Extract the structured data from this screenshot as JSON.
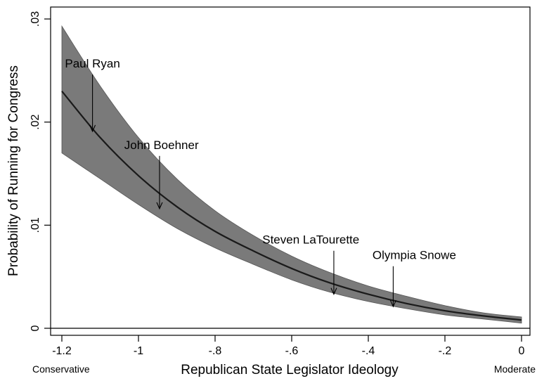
{
  "chart_data": {
    "type": "line",
    "title": "",
    "xlabel": "Republican State Legislator Ideology",
    "ylabel": "Probability of Running for Congress",
    "xlim": [
      -1.2,
      0
    ],
    "ylim": [
      0,
      0.03
    ],
    "x_ticks": [
      {
        "value": -1.2,
        "label": "-1.2"
      },
      {
        "value": -1.0,
        "label": "-1"
      },
      {
        "value": -0.8,
        "label": "-.8"
      },
      {
        "value": -0.6,
        "label": "-.6"
      },
      {
        "value": -0.4,
        "label": "-.4"
      },
      {
        "value": -0.2,
        "label": "-.2"
      },
      {
        "value": 0.0,
        "label": "0"
      }
    ],
    "y_ticks": [
      {
        "value": 0,
        "label": "0"
      },
      {
        "value": 0.01,
        "label": ".01"
      },
      {
        "value": 0.02,
        "label": ".02"
      },
      {
        "value": 0.03,
        "label": ".03"
      }
    ],
    "x_end_labels": {
      "left": "Conservative",
      "right": "Moderate"
    },
    "grid": false,
    "series": [
      {
        "x": [
          -1.2,
          -1.1,
          -1.0,
          -0.9,
          -0.8,
          -0.7,
          -0.6,
          -0.5,
          -0.4,
          -0.3,
          -0.2,
          -0.1,
          0.0
        ],
        "y": [
          0.023,
          0.0185,
          0.0148,
          0.0118,
          0.0094,
          0.0075,
          0.0058,
          0.0044,
          0.0033,
          0.0024,
          0.0017,
          0.0012,
          0.0008
        ],
        "lower": [
          0.017,
          0.0145,
          0.012,
          0.0097,
          0.0078,
          0.0062,
          0.0047,
          0.0035,
          0.0026,
          0.0019,
          0.0013,
          0.0009,
          0.0005
        ],
        "upper": [
          0.0293,
          0.0235,
          0.0185,
          0.0145,
          0.0114,
          0.009,
          0.007,
          0.0054,
          0.0041,
          0.0031,
          0.0022,
          0.0015,
          0.0011
        ]
      }
    ],
    "annotations": [
      {
        "label": "Paul Ryan",
        "x": -1.12,
        "y": 0.0191,
        "label_x": -1.12,
        "label_y": 0.0253
      },
      {
        "label": "John Boehner",
        "x": -0.945,
        "y": 0.0116,
        "label_x": -0.94,
        "label_y": 0.0174
      },
      {
        "label": "Steven LaTourette",
        "x": -0.49,
        "y": 0.0033,
        "label_x": -0.55,
        "label_y": 0.0082
      },
      {
        "label": "Olympia Snowe",
        "x": -0.335,
        "y": 0.0021,
        "label_x": -0.28,
        "label_y": 0.0067
      }
    ],
    "colors": {
      "band": "#7a7a7a",
      "line": "#1a1a1a",
      "axis": "#000000"
    }
  }
}
